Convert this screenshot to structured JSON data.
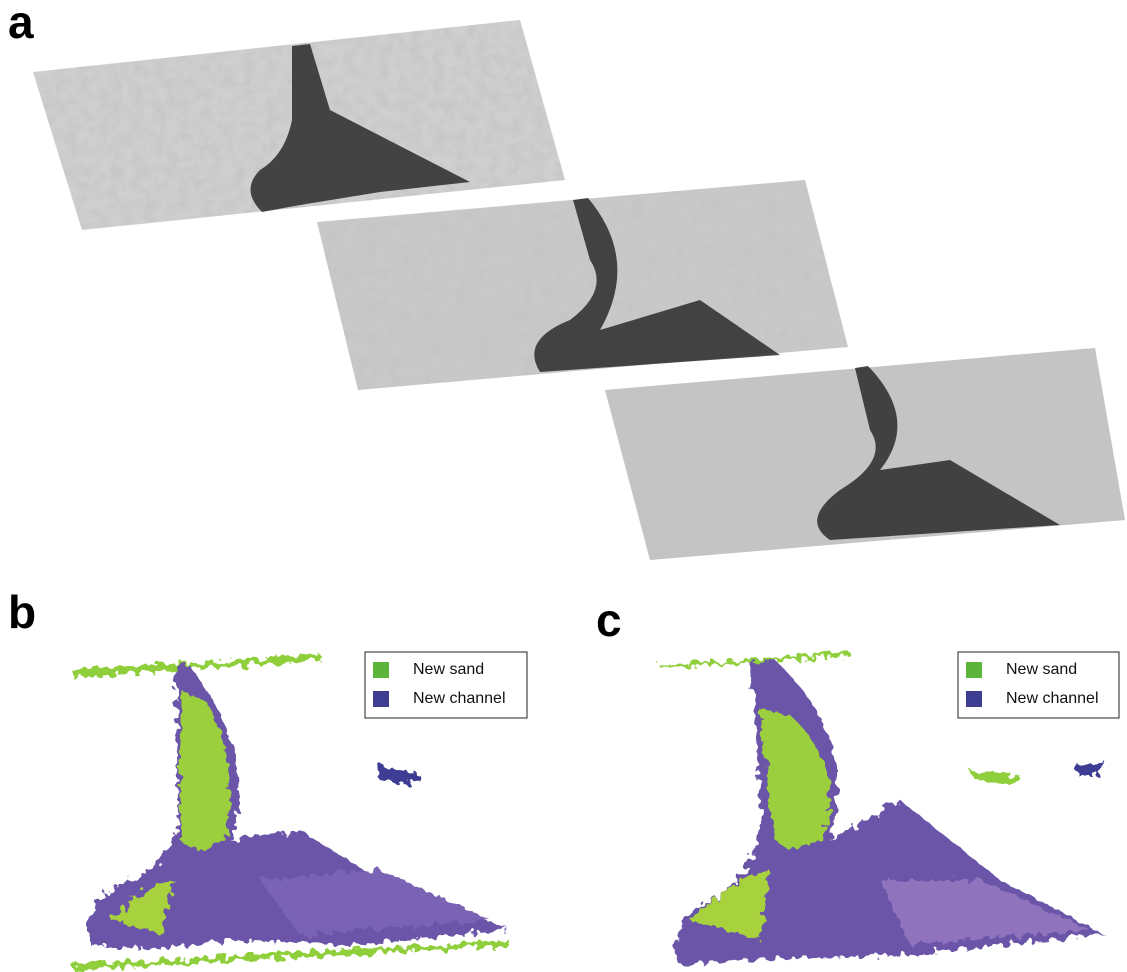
{
  "panels": [
    {
      "label": "a"
    },
    {
      "label": "b",
      "legend": [
        {
          "name": "New sand",
          "color": "#5db43a"
        },
        {
          "name": "New channel",
          "color": "#3d3d94"
        }
      ]
    },
    {
      "label": "c",
      "legend": [
        {
          "name": "New sand",
          "color": "#5db43a"
        },
        {
          "name": "New channel",
          "color": "#3d3d94"
        }
      ]
    }
  ]
}
